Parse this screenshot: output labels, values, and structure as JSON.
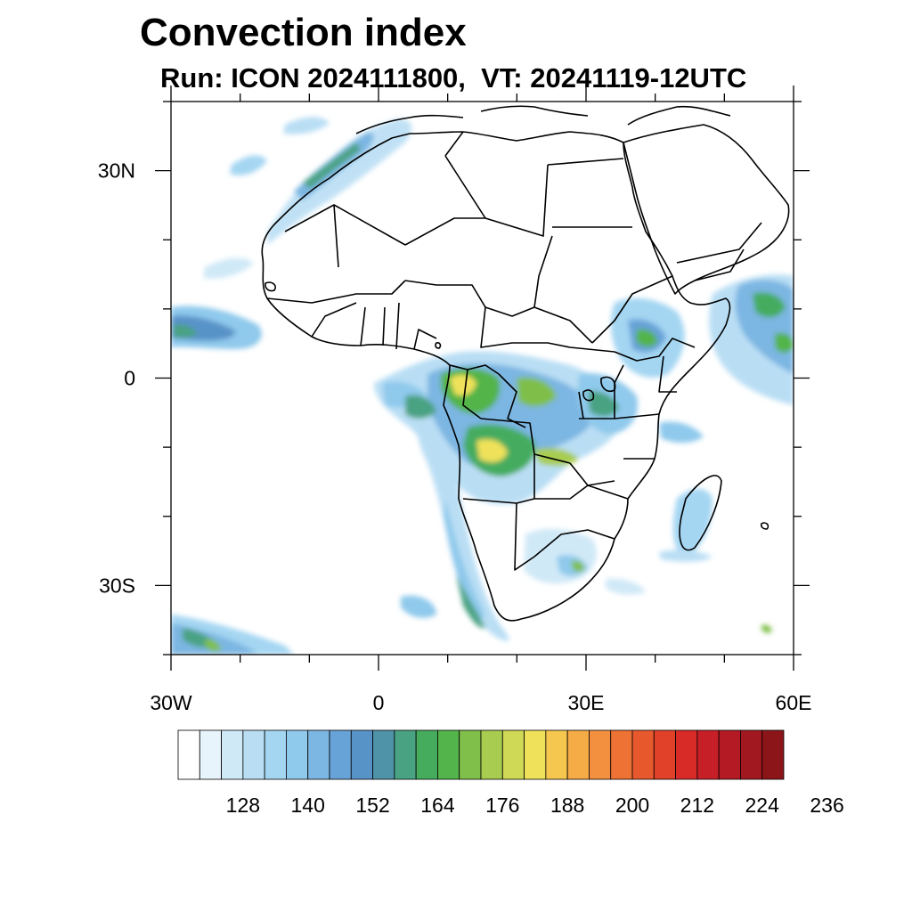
{
  "title": "Convection index",
  "subtitle": "Run: ICON 2024111800,  VT: 20241119-12UTC",
  "map": {
    "lon_range": [
      -30,
      60
    ],
    "lat_range": [
      -40,
      40
    ],
    "x_ticks": [
      {
        "value": -30,
        "label": "30W"
      },
      {
        "value": 0,
        "label": "0"
      },
      {
        "value": 30,
        "label": "30E"
      },
      {
        "value": 60,
        "label": "60E"
      }
    ],
    "y_ticks": [
      {
        "value": 30,
        "label": "30N"
      },
      {
        "value": 0,
        "label": "0"
      },
      {
        "value": -30,
        "label": "30S"
      }
    ]
  },
  "colorbar": {
    "labels": [
      "128",
      "140",
      "152",
      "164",
      "176",
      "188",
      "200",
      "212",
      "224",
      "236"
    ],
    "colors": [
      "#ffffff",
      "#e8f4fb",
      "#d0e9f7",
      "#b9def4",
      "#a4d6f2",
      "#8fc9ec",
      "#7cb6e2",
      "#68a3d8",
      "#5893c8",
      "#4f93a8",
      "#49a282",
      "#45ac5e",
      "#52b44a",
      "#7fbf4a",
      "#a8cc50",
      "#cfd955",
      "#efe25a",
      "#f6c74f",
      "#f5ab46",
      "#f3903f",
      "#ee7234",
      "#e7592d",
      "#e14128",
      "#d82a26",
      "#c61f27",
      "#b41a24",
      "#a11820",
      "#8c1519"
    ]
  }
}
